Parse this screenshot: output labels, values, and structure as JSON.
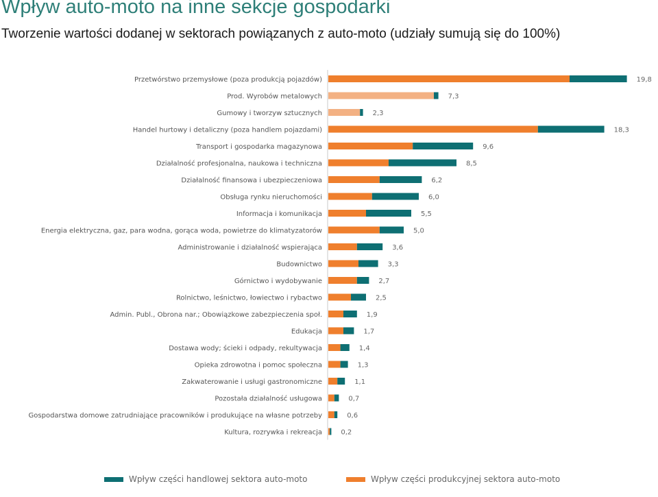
{
  "title": "Wpływ auto-moto na inne sekcje gospodarki",
  "subtitle": "Tworzenie wartości dodanej w sektorach powiązanych z auto-moto (udziały sumują się do 100%)",
  "colors": {
    "production": "#ef7f2d",
    "production_light": "#f3b183",
    "trade": "#0e6f73",
    "axis": "#c8c8c8",
    "label": "#555555",
    "value": "#666666"
  },
  "legend": {
    "trade": "Wpływ części handlowej sektora auto-moto",
    "production": "Wpływ części produkcyjnej sektora auto-moto"
  },
  "chart_data": {
    "type": "bar",
    "orientation": "horizontal",
    "stacked": true,
    "xlim": [
      0,
      20
    ],
    "grid": false,
    "legend_position": "bottom",
    "categories": [
      "Przetwórstwo przemysłowe (poza produkcją pojazdów)",
      "Prod. Wyrobów metalowych",
      "Gumowy i tworzyw sztucznych",
      "Handel hurtowy i detaliczny (poza handlem pojazdami)",
      "Transport i gospodarka magazynowa",
      "Działalność profesjonalna, naukowa i techniczna",
      "Działalność finansowa i ubezpieczeniowa",
      "Obsługa rynku nieruchomości",
      "Informacja i komunikacja",
      "Energia elektryczna, gaz, para wodna, gorąca woda, powietrze do klimatyzatorów",
      "Administrowanie i działalność wspierająca",
      "Budownictwo",
      "Górnictwo i wydobywanie",
      "Rolnictwo, leśnictwo, łowiectwo i rybactwo",
      "Admin. Publ., Obrona nar.; Obowiązkowe zabezpieczenia społ.",
      "Edukacja",
      "Dostawa wody; ścieki i odpady, rekultywacja",
      "Opieka zdrowotna i pomoc społeczna",
      "Zakwaterowanie i usługi gastronomiczne",
      "Pozostała działalność usługowa",
      "Gospodarstwa domowe zatrudniające pracowników i produkujące na własne potrzeby",
      "Kultura, rozrywka i rekreacja"
    ],
    "series": [
      {
        "name": "Wpływ części produkcyjnej sektora auto-moto",
        "values": [
          16.0,
          7.0,
          2.1,
          13.9,
          5.6,
          4.0,
          3.4,
          2.9,
          2.5,
          3.4,
          1.9,
          2.0,
          1.9,
          1.5,
          1.0,
          1.0,
          0.8,
          0.8,
          0.6,
          0.4,
          0.4,
          0.1
        ]
      },
      {
        "name": "Wpływ części handlowej sektora auto-moto",
        "values": [
          3.8,
          0.3,
          0.2,
          4.4,
          4.0,
          4.5,
          2.8,
          3.1,
          3.0,
          1.6,
          1.7,
          1.3,
          0.8,
          1.0,
          0.9,
          0.7,
          0.6,
          0.5,
          0.5,
          0.3,
          0.2,
          0.1
        ]
      }
    ],
    "totals": [
      "19,8",
      "7,3",
      "2,3",
      "18,3",
      "9,6",
      "8,5",
      "6,2",
      "6,0",
      "5,5",
      "5,0",
      "3,6",
      "3,3",
      "2,7",
      "2,5",
      "1,9",
      "1,7",
      "1,4",
      "1,3",
      "1,1",
      "0,7",
      "0,6",
      "0,2"
    ],
    "highlighted_light": [
      1,
      2
    ]
  }
}
